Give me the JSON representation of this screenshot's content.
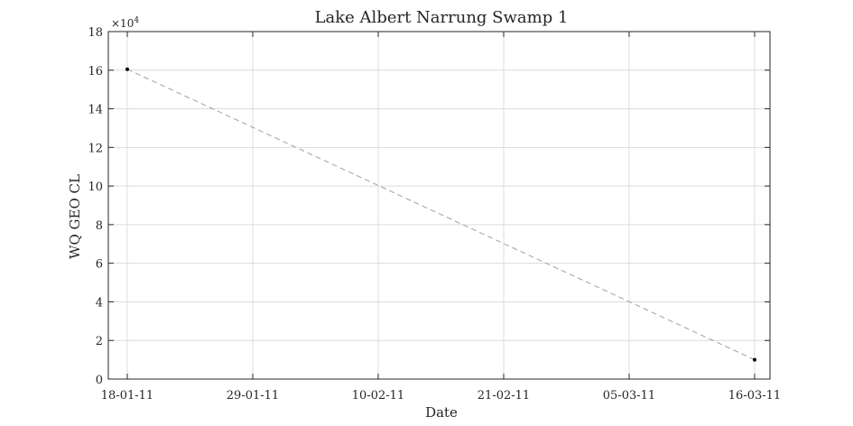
{
  "chart_data": {
    "type": "line",
    "title": "Lake Albert Narrung Swamp 1",
    "xlabel": "Date",
    "ylabel": "WQ GEO CL",
    "y_multiplier_label": "×10",
    "y_multiplier_exponent": "4",
    "x_ticks": [
      "18-01-11",
      "29-01-11",
      "10-02-11",
      "21-02-11",
      "05-03-11",
      "16-03-11"
    ],
    "y_ticks": [
      "0",
      "2",
      "4",
      "6",
      "8",
      "10",
      "12",
      "14",
      "16",
      "18"
    ],
    "ylim": [
      0,
      180000
    ],
    "xlim": [
      "2011-01-18",
      "2011-03-16"
    ],
    "grid": true,
    "series": [
      {
        "line_style": "dashed",
        "line_color": "#a0a0a0",
        "marker_color": "#000000",
        "points": [
          {
            "x": "2011-01-18",
            "y": 160500
          },
          {
            "x": "2011-03-16",
            "y": 10000
          }
        ]
      }
    ]
  }
}
